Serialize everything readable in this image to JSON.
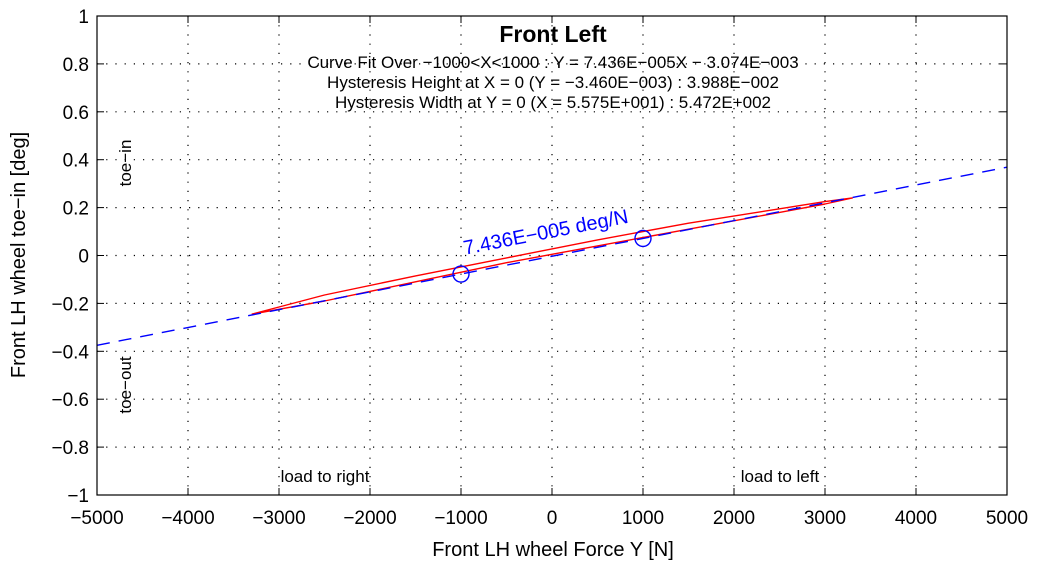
{
  "chart_data": {
    "type": "line",
    "title": "Front Left",
    "subtitle_lines": [
      "Curve Fit Over −1000<X<1000 : Y = 7.436E−005X − 3.074E−003",
      "Hysteresis Height at X = 0 (Y = −3.460E−003) : 3.988E−002",
      "Hysteresis Width at Y = 0 (X = 5.575E+001) : 5.472E+002"
    ],
    "xlabel": "Front LH wheel Force Y [N]",
    "ylabel": "Front LH wheel toe−in [deg]",
    "xlim": [
      -5000,
      5000
    ],
    "ylim": [
      -1,
      1
    ],
    "xticks": [
      -5000,
      -4000,
      -3000,
      -2000,
      -1000,
      0,
      1000,
      2000,
      3000,
      4000,
      5000
    ],
    "xtick_labels": [
      "−5000",
      "−4000",
      "−3000",
      "−2000",
      "−1000",
      "0",
      "1000",
      "2000",
      "3000",
      "4000",
      "5000"
    ],
    "yticks": [
      -1,
      -0.8,
      -0.6,
      -0.4,
      -0.2,
      0,
      0.2,
      0.4,
      0.6,
      0.8,
      1
    ],
    "ytick_labels": [
      "−1",
      "−0.8",
      "−0.6",
      "−0.4",
      "−0.2",
      "0",
      "0.2",
      "0.4",
      "0.6",
      "0.8",
      "1"
    ],
    "grid": true,
    "colors": {
      "measured": "#ff0000",
      "fit": "#0000ff",
      "grid": "#000000"
    },
    "series": [
      {
        "style": "solid",
        "color": "#ff0000",
        "points": [
          [
            -3300,
            -0.245
          ],
          [
            -2500,
            -0.19
          ],
          [
            -1500,
            -0.11
          ],
          [
            -500,
            -0.03
          ],
          [
            500,
            0.04
          ],
          [
            1500,
            0.11
          ],
          [
            2500,
            0.18
          ],
          [
            3000,
            0.215
          ],
          [
            3300,
            0.24
          ],
          [
            3000,
            0.225
          ],
          [
            2500,
            0.195
          ],
          [
            1500,
            0.135
          ],
          [
            500,
            0.065
          ],
          [
            -500,
            -0.01
          ],
          [
            -1500,
            -0.085
          ],
          [
            -2500,
            -0.165
          ],
          [
            -3000,
            -0.215
          ],
          [
            -3300,
            -0.245
          ]
        ]
      },
      {
        "style": "dashed",
        "color": "#0000ff",
        "slope": 7.436e-05,
        "intercept": -0.003074,
        "x": [
          -5000,
          5000
        ]
      }
    ],
    "markers": [
      {
        "x": -1000,
        "y": -0.0774
      },
      {
        "x": 1000,
        "y": 0.0713
      }
    ],
    "slope_label": "7.436E−005 deg/N",
    "annotations": {
      "toe_in": "toe−in",
      "toe_out": "toe−out",
      "load_right": "load to right",
      "load_left": "load to left"
    }
  }
}
